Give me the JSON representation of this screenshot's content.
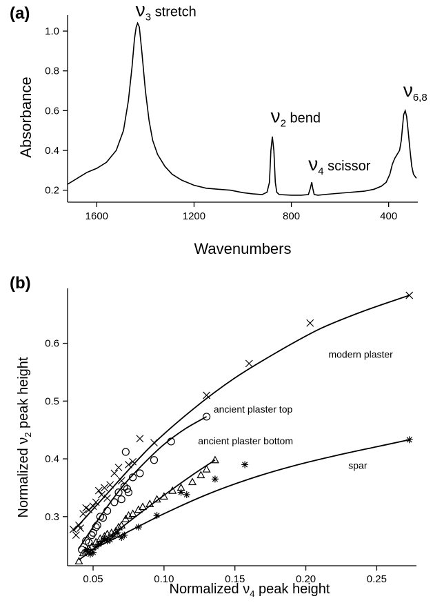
{
  "chart_data": [
    {
      "panel": "(a)",
      "type": "line",
      "xlabel": "Wavenumbers",
      "ylabel": "Absorbance",
      "xlim": [
        1720,
        280
      ],
      "ylim": [
        0.14,
        1.08
      ],
      "x_reversed": true,
      "xticks": [
        1600,
        1200,
        800,
        400
      ],
      "yticks": [
        0.2,
        0.4,
        0.6,
        0.8,
        1.0
      ],
      "ytick_labels": [
        "0.2",
        "0.4",
        "0.6",
        "0.8",
        "1.0"
      ],
      "grid": false,
      "series": [
        {
          "x": [
            1720,
            1680,
            1640,
            1600,
            1560,
            1520,
            1490,
            1470,
            1455,
            1445,
            1438,
            1432,
            1425,
            1415,
            1400,
            1385,
            1370,
            1350,
            1320,
            1290,
            1250,
            1200,
            1150,
            1100,
            1050,
            1000,
            960,
            920,
            900,
            890,
            884,
            878,
            872,
            866,
            860,
            850,
            800,
            760,
            730,
            722,
            716,
            712,
            706,
            690,
            650,
            600,
            550,
            500,
            460,
            430,
            410,
            395,
            385,
            375,
            365,
            355,
            348,
            342,
            338,
            332,
            326,
            320,
            312,
            305,
            298,
            292,
            286
          ],
          "y": [
            0.23,
            0.26,
            0.29,
            0.31,
            0.34,
            0.4,
            0.5,
            0.65,
            0.82,
            0.96,
            1.02,
            1.04,
            1.02,
            0.9,
            0.7,
            0.55,
            0.45,
            0.38,
            0.32,
            0.28,
            0.25,
            0.225,
            0.21,
            0.205,
            0.2,
            0.188,
            0.182,
            0.178,
            0.19,
            0.24,
            0.4,
            0.47,
            0.4,
            0.24,
            0.19,
            0.178,
            0.175,
            0.175,
            0.178,
            0.21,
            0.24,
            0.21,
            0.178,
            0.175,
            0.18,
            0.185,
            0.19,
            0.195,
            0.205,
            0.22,
            0.24,
            0.28,
            0.33,
            0.36,
            0.38,
            0.4,
            0.45,
            0.53,
            0.58,
            0.6,
            0.57,
            0.5,
            0.4,
            0.32,
            0.28,
            0.27,
            0.26
          ]
        }
      ],
      "annotations": [
        {
          "nu": "ν",
          "sub": "3",
          "text": "stretch",
          "x": 1440,
          "y": 1.075
        },
        {
          "nu": "ν",
          "sub": "2",
          "text": "bend",
          "x": 885,
          "y": 0.54
        },
        {
          "nu": "ν",
          "sub": "4",
          "text": "scissor",
          "x": 730,
          "y": 0.3
        },
        {
          "nu": "ν",
          "sub": "6,8",
          "text": "",
          "x": 340,
          "y": 0.67
        }
      ]
    },
    {
      "panel": "(b)",
      "type": "scatter",
      "xlabel_prefix": "Normalized ",
      "xlabel_nu": "ν",
      "xlabel_sub": "4",
      "xlabel_suffix": " peak height",
      "ylabel_prefix": "Normalized ",
      "ylabel_nu": "ν",
      "ylabel_sub": "2",
      "ylabel_suffix": " peak height",
      "xlim": [
        0.032,
        0.278
      ],
      "ylim": [
        0.215,
        0.695
      ],
      "xticks": [
        0.05,
        0.1,
        0.15,
        0.2,
        0.25
      ],
      "xtick_labels": [
        "0.05",
        "0.10",
        "0.15",
        "0.20",
        "0.25"
      ],
      "yticks": [
        0.3,
        0.4,
        0.5,
        0.6
      ],
      "ytick_labels": [
        "0.3",
        "0.4",
        "0.5",
        "0.6"
      ],
      "grid": false,
      "series": [
        {
          "name": "modern plaster",
          "marker": "x",
          "x": [
            0.036,
            0.038,
            0.04,
            0.041,
            0.043,
            0.045,
            0.047,
            0.05,
            0.052,
            0.054,
            0.056,
            0.058,
            0.06,
            0.062,
            0.065,
            0.068,
            0.07,
            0.075,
            0.078,
            0.083,
            0.093,
            0.13,
            0.16,
            0.203,
            0.273
          ],
          "y": [
            0.278,
            0.268,
            0.285,
            0.28,
            0.305,
            0.315,
            0.312,
            0.318,
            0.325,
            0.345,
            0.338,
            0.35,
            0.332,
            0.355,
            0.375,
            0.385,
            0.362,
            0.39,
            0.395,
            0.435,
            0.428,
            0.51,
            0.565,
            0.635,
            0.683
          ],
          "fit_x": [
            0.036,
            0.06,
            0.09,
            0.12,
            0.15,
            0.18,
            0.21,
            0.24,
            0.273
          ],
          "fit_y": [
            0.275,
            0.34,
            0.42,
            0.485,
            0.54,
            0.585,
            0.625,
            0.655,
            0.683
          ]
        },
        {
          "name": "ancient plaster top",
          "marker": "o",
          "x": [
            0.042,
            0.045,
            0.047,
            0.049,
            0.05,
            0.052,
            0.053,
            0.055,
            0.057,
            0.06,
            0.065,
            0.068,
            0.07,
            0.072,
            0.073,
            0.074,
            0.075,
            0.078,
            0.083,
            0.093,
            0.105,
            0.13
          ],
          "y": [
            0.243,
            0.258,
            0.255,
            0.268,
            0.272,
            0.282,
            0.285,
            0.3,
            0.298,
            0.31,
            0.325,
            0.342,
            0.33,
            0.352,
            0.412,
            0.348,
            0.342,
            0.368,
            0.375,
            0.398,
            0.43,
            0.473
          ],
          "fit_x": [
            0.04,
            0.055,
            0.07,
            0.085,
            0.1,
            0.115,
            0.13
          ],
          "fit_y": [
            0.245,
            0.3,
            0.35,
            0.39,
            0.425,
            0.452,
            0.473
          ]
        },
        {
          "name": "ancient plaster bottom",
          "marker": "triangle",
          "x": [
            0.04,
            0.043,
            0.045,
            0.047,
            0.049,
            0.052,
            0.055,
            0.058,
            0.06,
            0.063,
            0.066,
            0.068,
            0.07,
            0.073,
            0.075,
            0.078,
            0.082,
            0.085,
            0.09,
            0.095,
            0.1,
            0.106,
            0.112,
            0.12,
            0.126,
            0.13,
            0.136
          ],
          "y": [
            0.223,
            0.237,
            0.24,
            0.245,
            0.248,
            0.256,
            0.262,
            0.266,
            0.27,
            0.272,
            0.275,
            0.282,
            0.285,
            0.296,
            0.302,
            0.305,
            0.312,
            0.317,
            0.322,
            0.33,
            0.335,
            0.345,
            0.35,
            0.36,
            0.372,
            0.382,
            0.398
          ],
          "fit_x": [
            0.04,
            0.06,
            0.08,
            0.1,
            0.12,
            0.136
          ],
          "fit_y": [
            0.225,
            0.262,
            0.3,
            0.337,
            0.372,
            0.398
          ]
        },
        {
          "name": "spar",
          "marker": "asterisk",
          "x": [
            0.046,
            0.048,
            0.05,
            0.052,
            0.054,
            0.056,
            0.058,
            0.06,
            0.062,
            0.064,
            0.067,
            0.07,
            0.072,
            0.082,
            0.095,
            0.112,
            0.116,
            0.136,
            0.157,
            0.273
          ],
          "y": [
            0.243,
            0.235,
            0.238,
            0.248,
            0.252,
            0.256,
            0.262,
            0.258,
            0.26,
            0.266,
            0.272,
            0.264,
            0.268,
            0.282,
            0.302,
            0.342,
            0.338,
            0.365,
            0.39,
            0.433
          ],
          "fit_x": [
            0.045,
            0.07,
            0.1,
            0.13,
            0.16,
            0.19,
            0.22,
            0.25,
            0.273
          ],
          "fit_y": [
            0.238,
            0.268,
            0.305,
            0.338,
            0.365,
            0.387,
            0.405,
            0.421,
            0.433
          ]
        }
      ],
      "labels": [
        {
          "text": "modern plaster",
          "x": 0.216,
          "y": 0.575
        },
        {
          "text": "ancient plaster top",
          "x": 0.135,
          "y": 0.48
        },
        {
          "text": "ancient plaster bottom",
          "x": 0.124,
          "y": 0.425
        },
        {
          "text": "spar",
          "x": 0.23,
          "y": 0.383
        }
      ]
    }
  ]
}
